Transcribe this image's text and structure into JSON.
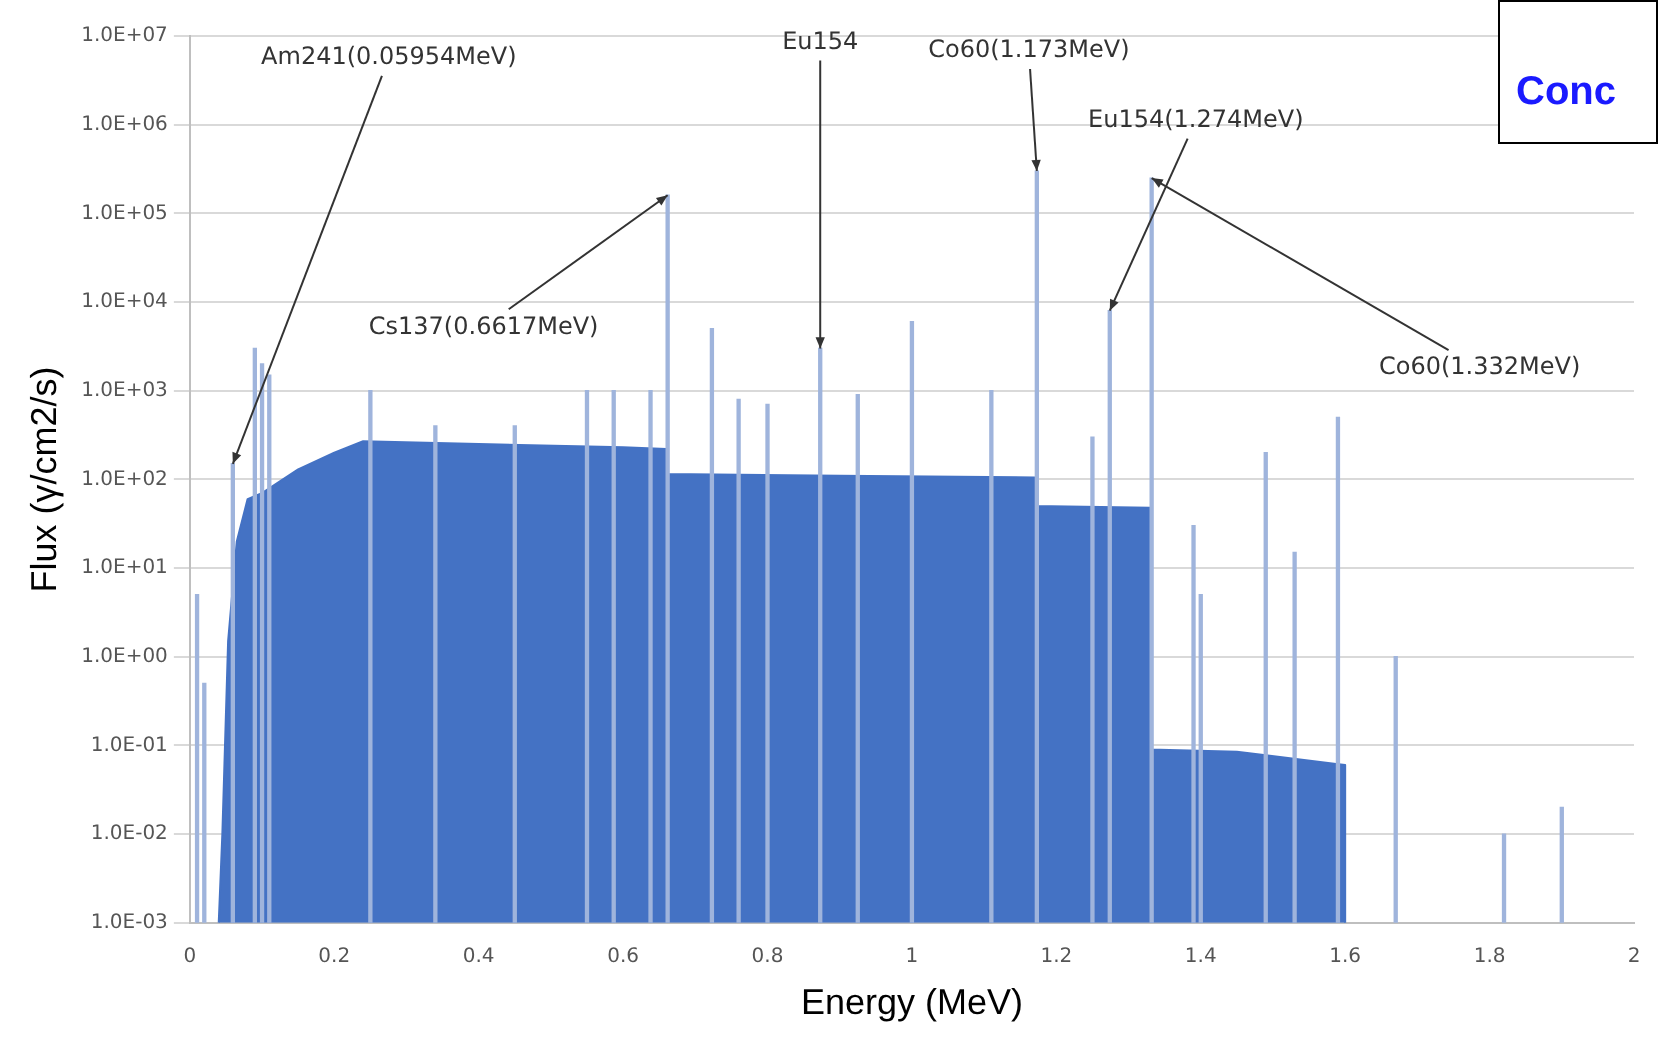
{
  "chart_data": {
    "type": "area",
    "xlabel": "Energy (MeV)",
    "ylabel": "Flux (γ/cm2/s)",
    "log": "y",
    "grid": "y",
    "legend": false,
    "xlim": [
      0,
      2
    ],
    "xticks": [
      0,
      0.2,
      0.4,
      0.6,
      0.8,
      1,
      1.2,
      1.4,
      1.6,
      1.8,
      2
    ],
    "ylim": [
      0.001,
      10000000
    ],
    "yticks": [
      {
        "value": 0.001,
        "label": "1.0E-03"
      },
      {
        "value": 0.01,
        "label": "1.0E-02"
      },
      {
        "value": 0.1,
        "label": "1.0E-01"
      },
      {
        "value": 1,
        "label": "1.0E+00"
      },
      {
        "value": 10,
        "label": "1.0E+01"
      },
      {
        "value": 100,
        "label": "1.0E+02"
      },
      {
        "value": 1000,
        "label": "1.0E+03"
      },
      {
        "value": 10000,
        "label": "1.0E+04"
      },
      {
        "value": 100000,
        "label": "1.0E+05"
      },
      {
        "value": 1000000,
        "label": "1.0E+06"
      },
      {
        "value": 10000000,
        "label": "1.0E+07"
      }
    ],
    "series": [
      {
        "color": "#4472c4",
        "x": [
          0.04,
          0.045,
          0.053,
          0.065,
          0.08,
          0.1,
          0.15,
          0.2,
          0.24,
          0.4,
          0.6,
          0.66,
          0.66,
          0.9,
          1.17,
          1.17,
          1.33,
          1.33,
          1.45,
          1.6,
          1.6
        ],
        "values": [
          0.001,
          0.01,
          1.5,
          20,
          60,
          70,
          130,
          200,
          270,
          250,
          230,
          220,
          115,
          110,
          105,
          50,
          48,
          0.09,
          0.085,
          0.06,
          0.001
        ]
      },
      {
        "type": "bar",
        "color": "#9fb4dc",
        "x": [
          0.01,
          0.02,
          0.05954,
          0.09,
          0.1,
          0.11,
          0.25,
          0.34,
          0.45,
          0.55,
          0.587,
          0.638,
          0.6617,
          0.723,
          0.76,
          0.8,
          0.873,
          0.925,
          1.0,
          1.11,
          1.173,
          1.25,
          1.274,
          1.332,
          1.39,
          1.4,
          1.49,
          1.53,
          1.59,
          1.67,
          1.82,
          1.9
        ],
        "values": [
          5,
          0.5,
          150,
          3000,
          2000,
          1500,
          1000,
          400,
          400,
          1000,
          1000,
          1000,
          160000,
          5000,
          800,
          700,
          3000,
          900,
          6000,
          1000,
          300000,
          300,
          8000,
          250000,
          30,
          5,
          200,
          15,
          500,
          1,
          0.01,
          0.02
        ]
      }
    ],
    "annotations": [
      {
        "text": "Am241(0.05954MeV)",
        "x": 0.05954,
        "y": 150
      },
      {
        "text": "Cs137(0.6617MeV)",
        "x": 0.6617,
        "y": 160000
      },
      {
        "text": "Eu154",
        "x": 0.873,
        "y": 3000
      },
      {
        "text": "Co60(1.173MeV)",
        "x": 1.173,
        "y": 300000
      },
      {
        "text": "Eu154(1.274MeV)",
        "x": 1.274,
        "y": 8000
      },
      {
        "text": "Co60(1.332MeV)",
        "x": 1.332,
        "y": 250000
      },
      "Conc"
    ]
  }
}
